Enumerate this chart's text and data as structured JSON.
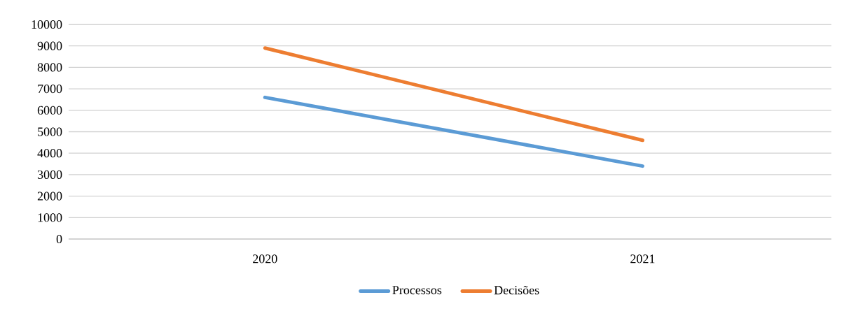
{
  "chart_data": {
    "type": "line",
    "categories": [
      "2020",
      "2021"
    ],
    "series": [
      {
        "name": "Processos",
        "color": "#5b9bd5",
        "values": [
          6600,
          3400
        ]
      },
      {
        "name": "Decisões",
        "color": "#ed7d31",
        "values": [
          8900,
          4600
        ]
      }
    ],
    "ylim": [
      0,
      10000
    ],
    "yticks": [
      0,
      1000,
      2000,
      3000,
      4000,
      5000,
      6000,
      7000,
      8000,
      9000,
      10000
    ],
    "grid": "y",
    "legend": "bottom"
  }
}
